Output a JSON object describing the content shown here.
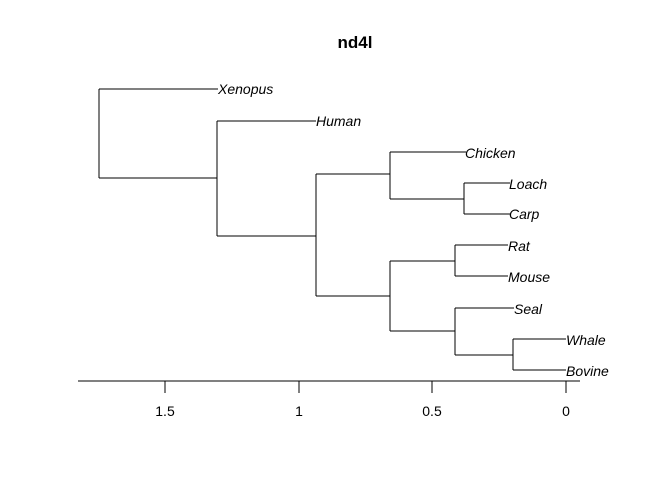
{
  "title": "nd4l",
  "axis": {
    "tick_labels": [
      "1.5",
      "1",
      "0.5",
      "0"
    ]
  },
  "tree": {
    "leaves": [
      "Xenopus",
      "Human",
      "Chicken",
      "Loach",
      "Carp",
      "Rat",
      "Mouse",
      "Seal",
      "Whale",
      "Bovine"
    ]
  }
}
